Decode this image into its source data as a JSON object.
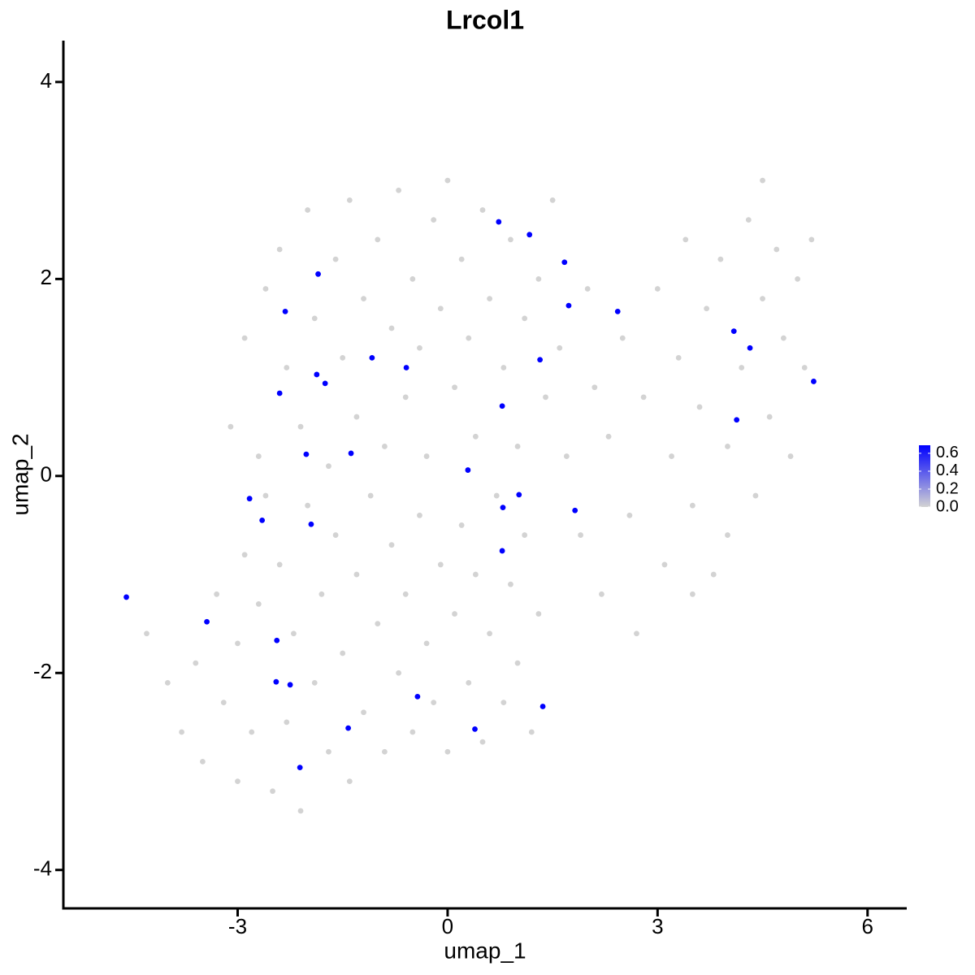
{
  "chart_data": {
    "type": "scatter",
    "title": "Lrcol1",
    "x_label": "umap_1",
    "y_label": "umap_2",
    "xlim": [
      -5.49,
      6.56
    ],
    "ylim": [
      -4.39,
      4.42
    ],
    "xticks": [
      -3,
      0,
      3,
      6
    ],
    "yticks": [
      -4,
      -2,
      0,
      2,
      4
    ],
    "x": [
      -4.3,
      -4.0,
      -3.8,
      -3.6,
      -3.5,
      -3.3,
      -3.2,
      -3.0,
      -3.0,
      -2.9,
      -2.8,
      -2.7,
      -2.6,
      -2.5,
      -2.4,
      -2.3,
      -2.2,
      -2.1,
      -2.0,
      -1.9,
      -1.8,
      -1.7,
      -1.6,
      -1.5,
      -1.4,
      -1.3,
      -1.2,
      -1.1,
      -1.0,
      -0.9,
      -0.8,
      -0.7,
      -0.6,
      -0.5,
      -0.4,
      -0.3,
      -0.2,
      -0.1,
      0.0,
      0.1,
      0.2,
      0.3,
      0.4,
      0.5,
      0.6,
      0.7,
      0.8,
      0.9,
      1.0,
      1.1,
      1.2,
      1.3,
      -3.1,
      -2.9,
      -2.7,
      -2.6,
      -2.4,
      -2.3,
      -2.1,
      -2.0,
      -1.9,
      -1.7,
      -1.6,
      -1.5,
      -1.4,
      -1.3,
      -1.2,
      -1.0,
      -0.9,
      -0.8,
      -0.7,
      -0.6,
      -0.5,
      -0.4,
      -0.3,
      -0.2,
      -0.1,
      0.0,
      0.1,
      0.2,
      0.3,
      0.4,
      0.5,
      0.6,
      0.8,
      0.9,
      1.0,
      1.1,
      1.3,
      1.4,
      1.5,
      1.6,
      1.7,
      1.9,
      2.0,
      2.1,
      2.2,
      2.3,
      2.5,
      2.6,
      2.7,
      2.8,
      3.0,
      3.1,
      3.2,
      3.3,
      3.4,
      3.5,
      3.6,
      3.7,
      3.8,
      3.9,
      4.0,
      4.2,
      4.3,
      4.4,
      4.5,
      4.6,
      4.7,
      4.8,
      4.9,
      5.0,
      5.1,
      5.2,
      4.5,
      4.0,
      3.5,
      -4.59,
      -3.44,
      -2.83,
      -2.65,
      -2.44,
      -2.45,
      -2.25,
      -2.11,
      -2.4,
      -2.32,
      -1.85,
      -1.87,
      -1.75,
      -2.02,
      -1.95,
      -1.38,
      -1.08,
      -0.59,
      -0.43,
      -1.42,
      0.39,
      1.36,
      0.29,
      0.79,
      1.02,
      0.78,
      1.82,
      0.78,
      1.32,
      0.73,
      1.17,
      1.67,
      1.73,
      2.43,
      4.09,
      4.32,
      4.13,
      5.23
    ],
    "y": [
      -1.6,
      -2.1,
      -2.6,
      -1.9,
      -2.9,
      -1.2,
      -2.3,
      -3.1,
      -1.7,
      -0.8,
      -2.6,
      -1.3,
      -0.2,
      -3.2,
      -0.9,
      -2.5,
      -1.6,
      -3.4,
      -0.3,
      -2.1,
      -1.2,
      -2.8,
      -0.6,
      -1.8,
      -3.1,
      -1.0,
      -2.4,
      -0.2,
      -1.5,
      -2.8,
      -0.7,
      -2.0,
      -1.2,
      -2.6,
      -0.4,
      -1.7,
      -2.3,
      -0.9,
      -2.8,
      -1.4,
      -0.5,
      -2.1,
      -1.0,
      -2.7,
      -1.6,
      -0.2,
      -2.3,
      -1.1,
      -1.9,
      -0.6,
      -2.6,
      -1.4,
      0.5,
      1.4,
      0.2,
      1.9,
      2.3,
      1.1,
      0.5,
      2.7,
      1.6,
      0.1,
      2.2,
      1.2,
      2.8,
      0.6,
      1.8,
      2.4,
      0.3,
      1.5,
      2.9,
      0.8,
      2.0,
      1.3,
      0.2,
      2.6,
      1.7,
      3.0,
      0.9,
      2.2,
      1.4,
      0.4,
      2.7,
      1.8,
      1.1,
      2.4,
      0.3,
      1.6,
      2.0,
      0.8,
      2.8,
      1.3,
      0.2,
      -0.6,
      1.9,
      0.9,
      -1.2,
      0.4,
      1.4,
      -0.4,
      -1.6,
      0.8,
      1.9,
      -0.9,
      0.2,
      1.2,
      2.4,
      -0.3,
      0.7,
      1.7,
      -1.0,
      2.2,
      0.3,
      1.1,
      2.6,
      -0.2,
      1.8,
      0.6,
      2.3,
      1.4,
      0.2,
      2.0,
      1.1,
      2.4,
      3.0,
      -0.6,
      -1.2,
      -1.23,
      -1.48,
      -0.23,
      -0.45,
      -1.67,
      -2.09,
      -2.12,
      -2.96,
      0.84,
      1.67,
      2.05,
      1.03,
      0.94,
      0.22,
      -0.49,
      0.23,
      1.2,
      1.1,
      -2.24,
      -2.56,
      -2.57,
      -2.34,
      0.06,
      -0.32,
      -0.19,
      -0.76,
      -0.35,
      0.71,
      1.18,
      2.58,
      2.45,
      2.17,
      1.73,
      1.67,
      1.47,
      1.3,
      0.57,
      0.96
    ],
    "values": [
      0,
      0,
      0,
      0,
      0,
      0,
      0,
      0,
      0,
      0,
      0,
      0,
      0,
      0,
      0,
      0,
      0,
      0,
      0,
      0,
      0,
      0,
      0,
      0,
      0,
      0,
      0,
      0,
      0,
      0,
      0,
      0,
      0,
      0,
      0,
      0,
      0,
      0,
      0,
      0,
      0,
      0,
      0,
      0,
      0,
      0,
      0,
      0,
      0,
      0,
      0,
      0,
      0,
      0,
      0,
      0,
      0,
      0,
      0,
      0,
      0,
      0,
      0,
      0,
      0,
      0,
      0,
      0,
      0,
      0,
      0,
      0,
      0,
      0,
      0,
      0,
      0,
      0,
      0,
      0,
      0,
      0,
      0,
      0,
      0,
      0,
      0,
      0,
      0,
      0,
      0,
      0,
      0,
      0,
      0,
      0,
      0,
      0,
      0,
      0,
      0,
      0,
      0,
      0,
      0,
      0,
      0,
      0,
      0,
      0,
      0,
      0,
      0,
      0,
      0,
      0,
      0,
      0,
      0,
      0,
      0,
      0,
      0,
      0,
      0,
      0,
      0,
      0.69,
      0.69,
      0.69,
      0.69,
      0.69,
      0.69,
      0.69,
      0.69,
      0.69,
      0.69,
      0.69,
      0.69,
      0.69,
      0.69,
      0.69,
      0.69,
      0.69,
      0.69,
      0.69,
      0.69,
      0.69,
      0.69,
      0.69,
      0.69,
      0.69,
      0.69,
      0.69,
      0.69,
      0.69,
      0.69,
      0.69,
      0.69,
      0.69,
      0.69,
      0.69,
      0.69,
      0.69,
      0.69
    ],
    "colorbar": {
      "low_color": "#d3d3d3",
      "high_color": "#0000ff",
      "lim": [
        0,
        0.69
      ],
      "ticks": [
        {
          "value": 0,
          "label": "0.0"
        },
        0.2,
        0.4,
        0.6
      ]
    }
  }
}
